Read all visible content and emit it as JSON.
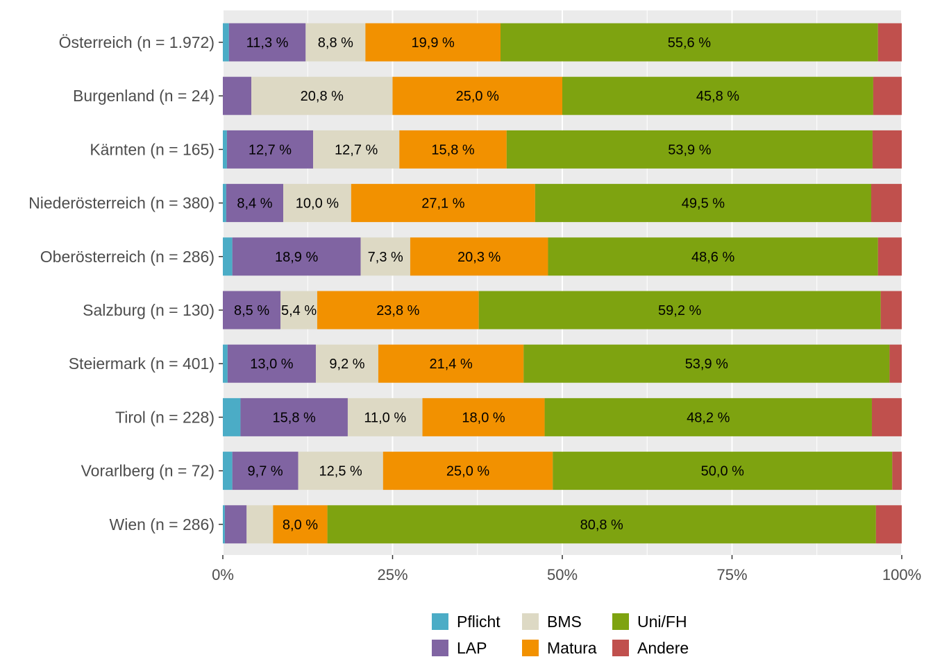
{
  "chart_data": {
    "type": "bar",
    "orientation": "horizontal",
    "stacked": "percent",
    "categories": [
      "Österreich (n = 1.972)",
      "Burgenland (n = 24)",
      "Kärnten (n = 165)",
      "Niederösterreich (n = 380)",
      "Oberösterreich (n = 286)",
      "Salzburg (n = 130)",
      "Steiermark (n = 401)",
      "Tirol (n = 228)",
      "Vorarlberg (n = 72)",
      "Wien (n = 286)"
    ],
    "series": [
      {
        "name": "Pflicht",
        "color": "#4bacc6",
        "values": [
          0.9,
          0,
          0.6,
          0.5,
          1.4,
          0,
          0.7,
          2.6,
          1.4,
          0.3
        ]
      },
      {
        "name": "LAP",
        "color": "#8064a2",
        "values": [
          11.3,
          4.2,
          12.7,
          8.4,
          18.9,
          8.5,
          13.0,
          15.8,
          9.7,
          3.2
        ]
      },
      {
        "name": "BMS",
        "color": "#ddd9c4",
        "values": [
          8.8,
          20.8,
          12.7,
          10.0,
          7.3,
          5.4,
          9.2,
          11.0,
          12.5,
          3.9
        ]
      },
      {
        "name": "Matura",
        "color": "#f29100",
        "values": [
          19.9,
          25.0,
          15.8,
          27.1,
          20.3,
          23.8,
          21.4,
          18.0,
          25.0,
          8.0
        ]
      },
      {
        "name": "Uni/FH",
        "color": "#7ea310",
        "values": [
          55.6,
          45.8,
          53.9,
          49.5,
          48.6,
          59.2,
          53.9,
          48.2,
          50.0,
          80.8
        ]
      },
      {
        "name": "Andere",
        "color": "#c0504d",
        "values": [
          3.5,
          4.2,
          4.3,
          4.5,
          3.5,
          3.1,
          1.8,
          4.4,
          1.4,
          3.8
        ]
      }
    ],
    "bar_labels": [
      [
        "",
        "11,3 %",
        "8,8 %",
        "19,9 %",
        "55,6 %",
        ""
      ],
      [
        "",
        "",
        "20,8 %",
        "25,0 %",
        "45,8 %",
        ""
      ],
      [
        "",
        "12,7 %",
        "12,7 %",
        "15,8 %",
        "53,9 %",
        ""
      ],
      [
        "",
        "8,4 %",
        "10,0 %",
        "27,1 %",
        "49,5 %",
        ""
      ],
      [
        "",
        "18,9 %",
        "7,3 %",
        "20,3 %",
        "48,6 %",
        ""
      ],
      [
        "",
        "8,5 %",
        "5,4 %",
        "23,8 %",
        "59,2 %",
        ""
      ],
      [
        "",
        "13,0 %",
        "9,2 %",
        "21,4 %",
        "53,9 %",
        ""
      ],
      [
        "",
        "15,8 %",
        "11,0 %",
        "18,0 %",
        "48,2 %",
        ""
      ],
      [
        "",
        "9,7 %",
        "12,5 %",
        "25,0 %",
        "50,0 %",
        ""
      ],
      [
        "",
        "",
        "",
        "8,0 %",
        "80,8 %",
        ""
      ]
    ],
    "x_ticks": [
      "0%",
      "25%",
      "50%",
      "75%",
      "100%"
    ],
    "xlim": [
      0,
      100
    ],
    "grid": true,
    "legend_position": "bottom",
    "legend_order": [
      "Pflicht",
      "LAP",
      "BMS",
      "Matura",
      "Uni/FH",
      "Andere"
    ],
    "panel_background": "#ebebeb",
    "title": "",
    "xlabel": "",
    "ylabel": ""
  }
}
